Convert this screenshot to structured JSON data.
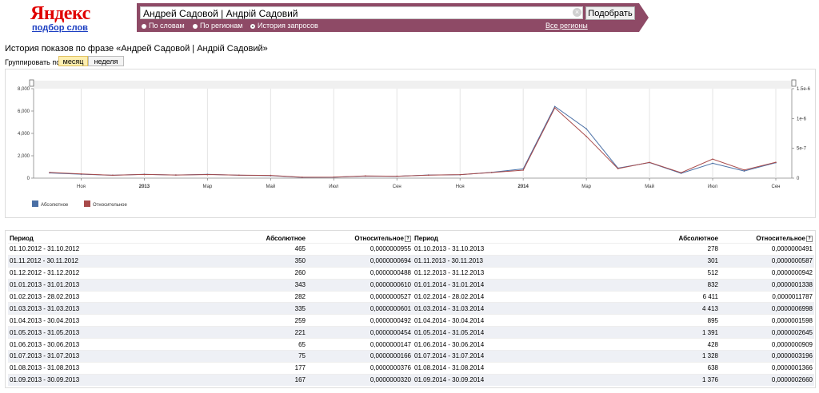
{
  "header": {
    "logo_text": "Яндекс",
    "logo_sub": "подбор слов",
    "search_value": "Андрей Садовой | Андрій Садовий",
    "submit_label": "Подобрать",
    "radios": [
      "По словам",
      "По регионам",
      "История запросов"
    ],
    "regions_link": "Все регионы",
    "accent_color": "#8e4a66"
  },
  "title": "История показов по фразе «Андрей Садовой | Андрій Садовий»",
  "grouping": {
    "label": "Группировать по:",
    "options": [
      "месяц",
      "неделя"
    ],
    "selected": "месяц"
  },
  "chart_data": {
    "type": "line",
    "x": [
      "2012-10",
      "2012-11",
      "2012-12",
      "2013-01",
      "2013-02",
      "2013-03",
      "2013-04",
      "2013-05",
      "2013-06",
      "2013-07",
      "2013-08",
      "2013-09",
      "2013-10",
      "2013-11",
      "2013-12",
      "2014-01",
      "2014-02",
      "2014-03",
      "2014-04",
      "2014-05",
      "2014-06",
      "2014-07",
      "2014-08",
      "2014-09"
    ],
    "x_tick_labels": [
      "Ноя",
      "2013",
      "Мар",
      "Май",
      "Июл",
      "Сен",
      "Ноя",
      "2014",
      "Мар",
      "Май",
      "Июл",
      "Сен"
    ],
    "y_ticks": [
      "0",
      "2,000",
      "4,000",
      "6,000",
      "8,000"
    ],
    "y2_ticks": [
      "0",
      "5e-7",
      "1e-6",
      "1.5e-6"
    ],
    "ylim": [
      0,
      8000
    ],
    "y2lim": [
      0,
      1.5e-06
    ],
    "series": [
      {
        "name": "Абсолютное",
        "color": "#4a6fa5",
        "values": [
          465,
          350,
          260,
          343,
          282,
          335,
          259,
          221,
          65,
          75,
          177,
          167,
          278,
          301,
          512,
          832,
          6411,
          4413,
          895,
          1391,
          428,
          1328,
          638,
          1376
        ]
      },
      {
        "name": "Относительное",
        "color": "#a84a4a",
        "values": [
          9.55e-08,
          6.94e-08,
          4.88e-08,
          6.1e-08,
          5.27e-08,
          6.01e-08,
          4.92e-08,
          4.54e-08,
          1.47e-08,
          1.66e-08,
          3.76e-08,
          3.2e-08,
          4.91e-08,
          5.87e-08,
          9.42e-08,
          1.338e-07,
          1.1787e-06,
          6.998e-07,
          1.598e-07,
          2.645e-07,
          9.09e-08,
          3.196e-07,
          1.366e-07,
          2.66e-07
        ]
      }
    ]
  },
  "table": {
    "headers": [
      "Период",
      "Абсолютное",
      "Относительное"
    ],
    "left": [
      [
        "01.10.2012 - 31.10.2012",
        "465",
        "0,0000000955"
      ],
      [
        "01.11.2012 - 30.11.2012",
        "350",
        "0,0000000694"
      ],
      [
        "01.12.2012 - 31.12.2012",
        "260",
        "0,0000000488"
      ],
      [
        "01.01.2013 - 31.01.2013",
        "343",
        "0,0000000610"
      ],
      [
        "01.02.2013 - 28.02.2013",
        "282",
        "0,0000000527"
      ],
      [
        "01.03.2013 - 31.03.2013",
        "335",
        "0,0000000601"
      ],
      [
        "01.04.2013 - 30.04.2013",
        "259",
        "0,0000000492"
      ],
      [
        "01.05.2013 - 31.05.2013",
        "221",
        "0,0000000454"
      ],
      [
        "01.06.2013 - 30.06.2013",
        "65",
        "0,0000000147"
      ],
      [
        "01.07.2013 - 31.07.2013",
        "75",
        "0,0000000166"
      ],
      [
        "01.08.2013 - 31.08.2013",
        "177",
        "0,0000000376"
      ],
      [
        "01.09.2013 - 30.09.2013",
        "167",
        "0,0000000320"
      ]
    ],
    "right": [
      [
        "01.10.2013 - 31.10.2013",
        "278",
        "0,0000000491"
      ],
      [
        "01.11.2013 - 30.11.2013",
        "301",
        "0,0000000587"
      ],
      [
        "01.12.2013 - 31.12.2013",
        "512",
        "0,0000000942"
      ],
      [
        "01.01.2014 - 31.01.2014",
        "832",
        "0,0000001338"
      ],
      [
        "01.02.2014 - 28.02.2014",
        "6 411",
        "0,0000011787"
      ],
      [
        "01.03.2014 - 31.03.2014",
        "4 413",
        "0,0000006998"
      ],
      [
        "01.04.2014 - 30.04.2014",
        "895",
        "0,0000001598"
      ],
      [
        "01.05.2014 - 31.05.2014",
        "1 391",
        "0,0000002645"
      ],
      [
        "01.06.2014 - 30.06.2014",
        "428",
        "0,0000000909"
      ],
      [
        "01.07.2014 - 31.07.2014",
        "1 328",
        "0,0000003196"
      ],
      [
        "01.08.2014 - 31.08.2014",
        "638",
        "0,0000001366"
      ],
      [
        "01.09.2014 - 30.09.2014",
        "1 376",
        "0,0000002660"
      ]
    ]
  }
}
